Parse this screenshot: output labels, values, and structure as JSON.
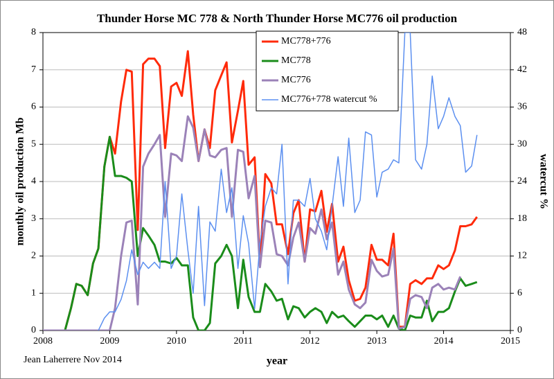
{
  "chart_data": {
    "type": "line",
    "title": "Thunder Horse MC 778 & North Thunder Horse MC776 oil production",
    "x_label": "year",
    "y_label": "monthly oil production Mb",
    "y2_label": "watercut %",
    "note": "Jean Laherrere Nov 2014",
    "x": [
      2008,
      2008.08,
      2008.17,
      2008.25,
      2008.33,
      2008.42,
      2008.5,
      2008.58,
      2008.67,
      2008.75,
      2008.83,
      2008.92,
      2009,
      2009.08,
      2009.17,
      2009.25,
      2009.33,
      2009.42,
      2009.5,
      2009.58,
      2009.67,
      2009.75,
      2009.83,
      2009.92,
      2010,
      2010.08,
      2010.17,
      2010.25,
      2010.33,
      2010.42,
      2010.5,
      2010.58,
      2010.67,
      2010.75,
      2010.83,
      2010.92,
      2011,
      2011.08,
      2011.17,
      2011.25,
      2011.33,
      2011.42,
      2011.5,
      2011.58,
      2011.67,
      2011.75,
      2011.83,
      2011.92,
      2012,
      2012.08,
      2012.17,
      2012.25,
      2012.33,
      2012.42,
      2012.5,
      2012.58,
      2012.67,
      2012.75,
      2012.83,
      2012.92,
      2013,
      2013.08,
      2013.17,
      2013.25,
      2013.33,
      2013.42,
      2013.5,
      2013.58,
      2013.67,
      2013.75,
      2013.83,
      2013.92,
      2014,
      2014.08,
      2014.17,
      2014.25,
      2014.33,
      2014.42,
      2014.5
    ],
    "xlim": [
      2008,
      2015
    ],
    "xticks": [
      2008,
      2009,
      2010,
      2011,
      2012,
      2013,
      2014,
      2015
    ],
    "ylim": [
      0,
      8
    ],
    "yticks": [
      0,
      1,
      2,
      3,
      4,
      5,
      6,
      7,
      8
    ],
    "y2lim": [
      0,
      48
    ],
    "y2ticks": [
      0,
      6,
      12,
      18,
      24,
      30,
      36,
      42,
      48
    ],
    "grid": true,
    "legend_position": "top",
    "series": [
      {
        "name": "MC778+776",
        "color": "#ff2a0a",
        "width": 3,
        "values": [
          0,
          0,
          0,
          0,
          0,
          0.6,
          1.25,
          1.2,
          0.95,
          1.8,
          2.2,
          4.4,
          5.2,
          4.75,
          6.15,
          7.0,
          6.95,
          2.7,
          7.15,
          7.3,
          7.3,
          7.1,
          4.9,
          6.55,
          6.65,
          6.3,
          7.5,
          5.8,
          4.55,
          5.4,
          4.9,
          6.45,
          6.85,
          7.2,
          5.05,
          5.9,
          6.7,
          4.45,
          4.65,
          1.8,
          4.2,
          3.95,
          2.85,
          2.85,
          2.05,
          3.15,
          3.5,
          1.85,
          3.25,
          3.2,
          3.75,
          2.65,
          3.4,
          1.85,
          2.25,
          1.35,
          0.8,
          0.85,
          1.15,
          2.3,
          1.9,
          1.9,
          1.75,
          2.6,
          0.1,
          0.1,
          1.25,
          1.35,
          1.25,
          1.4,
          1.4,
          1.75,
          1.65,
          1.75,
          2.15,
          2.8,
          2.8,
          2.85,
          3.05
        ]
      },
      {
        "name": "MC778",
        "color": "#1a8c1a",
        "width": 3,
        "values": [
          0,
          0,
          0,
          0,
          0,
          0.6,
          1.25,
          1.2,
          0.95,
          1.8,
          2.2,
          4.4,
          5.2,
          4.15,
          4.15,
          4.1,
          4.0,
          2.0,
          2.75,
          2.55,
          2.3,
          1.85,
          1.85,
          1.8,
          1.95,
          1.75,
          1.75,
          0.35,
          0,
          0,
          0.2,
          1.8,
          2.0,
          2.3,
          2.0,
          0.6,
          1.9,
          0.9,
          0.5,
          0.5,
          1.25,
          1.05,
          0.8,
          0.85,
          0.3,
          0.65,
          0.6,
          0.35,
          0.5,
          0.6,
          0.5,
          0.2,
          0.5,
          0.35,
          0.4,
          0.25,
          0.1,
          0.25,
          0.4,
          0.4,
          0.3,
          0.4,
          0.1,
          0.4,
          0.05,
          0,
          0.4,
          0.35,
          0.35,
          0.8,
          0.25,
          0.5,
          0.5,
          0.6,
          1.05,
          1.4,
          1.2,
          1.25,
          1.3
        ]
      },
      {
        "name": "MC776",
        "color": "#9b82b8",
        "width": 3,
        "values": [
          0,
          0,
          0,
          0,
          0,
          0,
          0,
          0,
          0,
          0,
          0,
          0,
          0,
          0.6,
          2.0,
          2.9,
          2.95,
          0.7,
          4.4,
          4.75,
          5.0,
          5.25,
          3.05,
          4.75,
          4.7,
          4.55,
          5.75,
          5.45,
          4.55,
          5.4,
          4.7,
          4.65,
          4.85,
          4.9,
          3.05,
          4.85,
          4.8,
          3.55,
          4.15,
          1.7,
          2.95,
          2.9,
          2.05,
          2.0,
          1.75,
          2.5,
          2.9,
          1.85,
          2.75,
          2.6,
          3.25,
          2.45,
          2.9,
          1.5,
          1.85,
          1.1,
          0.7,
          0.6,
          0.75,
          1.9,
          1.6,
          1.45,
          1.5,
          2.2,
          0.05,
          0.1,
          0.85,
          0.95,
          0.9,
          0.6,
          1.15,
          1.25,
          1.1,
          1.15,
          1.1,
          1.45,
          null,
          null,
          null
        ]
      },
      {
        "name": "MC776+778 watercut %",
        "color": "#5b8ff0",
        "width": 1.5,
        "axis": "y2",
        "values": [
          null,
          null,
          null,
          null,
          null,
          null,
          null,
          null,
          null,
          null,
          0,
          2,
          3,
          3,
          5,
          8,
          13,
          9,
          11,
          10,
          11,
          10,
          24,
          10,
          12,
          22,
          13,
          6,
          20,
          4,
          17.5,
          16,
          26,
          19,
          23,
          10,
          18.5,
          14,
          3.5,
          14,
          20,
          23,
          22,
          30,
          7.5,
          21,
          21,
          20,
          24.5,
          18,
          16,
          13,
          20,
          28,
          20,
          31,
          19,
          21,
          32,
          31.5,
          21.5,
          25.5,
          26,
          27.5,
          27,
          48,
          48,
          27.5,
          26,
          30,
          41,
          32.5,
          34.5,
          37.5,
          34.5,
          33,
          25.5,
          26.5,
          31.5
        ]
      }
    ]
  }
}
